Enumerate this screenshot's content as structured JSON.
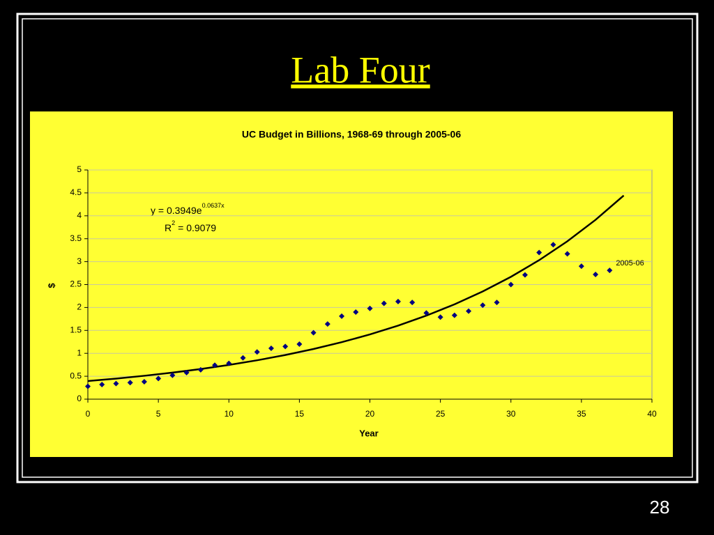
{
  "slide": {
    "title": "Lab Four",
    "page_number": "28"
  },
  "chart_data": {
    "type": "scatter",
    "title": "UC Budget in Billions, 1968-69 through 2005-06",
    "x_label": "Year",
    "y_label": "$",
    "x": [
      0,
      1,
      2,
      3,
      4,
      5,
      6,
      7,
      8,
      9,
      10,
      11,
      12,
      13,
      14,
      15,
      16,
      17,
      18,
      19,
      20,
      21,
      22,
      23,
      24,
      25,
      26,
      27,
      28,
      29,
      30,
      31,
      32,
      33,
      34,
      35,
      36,
      37
    ],
    "values": [
      0.28,
      0.32,
      0.34,
      0.36,
      0.38,
      0.45,
      0.52,
      0.58,
      0.64,
      0.74,
      0.78,
      0.9,
      1.03,
      1.11,
      1.15,
      1.2,
      1.45,
      1.64,
      1.81,
      1.9,
      1.98,
      2.09,
      2.13,
      2.11,
      1.88,
      1.79,
      1.83,
      1.92,
      2.05,
      2.11,
      2.5,
      2.71,
      3.2,
      3.37,
      3.17,
      2.9,
      2.72,
      2.81
    ],
    "color": "#000080",
    "last_point_label": "2005-06",
    "trendline": {
      "type": "exponential",
      "color": "#000000",
      "x": [
        0,
        2,
        4,
        6,
        8,
        10,
        12,
        14,
        16,
        18,
        20,
        22,
        24,
        26,
        28,
        30,
        32,
        34,
        36,
        38
      ],
      "values": [
        0.395,
        0.449,
        0.51,
        0.579,
        0.657,
        0.747,
        0.848,
        0.963,
        1.094,
        1.243,
        1.412,
        1.604,
        1.822,
        2.069,
        2.35,
        2.669,
        3.032,
        3.444,
        3.912,
        4.443
      ]
    },
    "equation": {
      "base": "y = 0.3949e",
      "exponent": "0.0637x"
    },
    "r_squared": {
      "base": "R",
      "exponent": "2",
      "rest": "= 0.9079"
    },
    "xlim": [
      0,
      40
    ],
    "xticks": [
      0,
      5,
      10,
      15,
      20,
      25,
      30,
      35,
      40
    ],
    "ylim": [
      0,
      5
    ],
    "yticks": [
      0,
      0.5,
      1,
      1.5,
      2,
      2.5,
      3,
      3.5,
      4,
      4.5,
      5
    ],
    "grid": true
  }
}
